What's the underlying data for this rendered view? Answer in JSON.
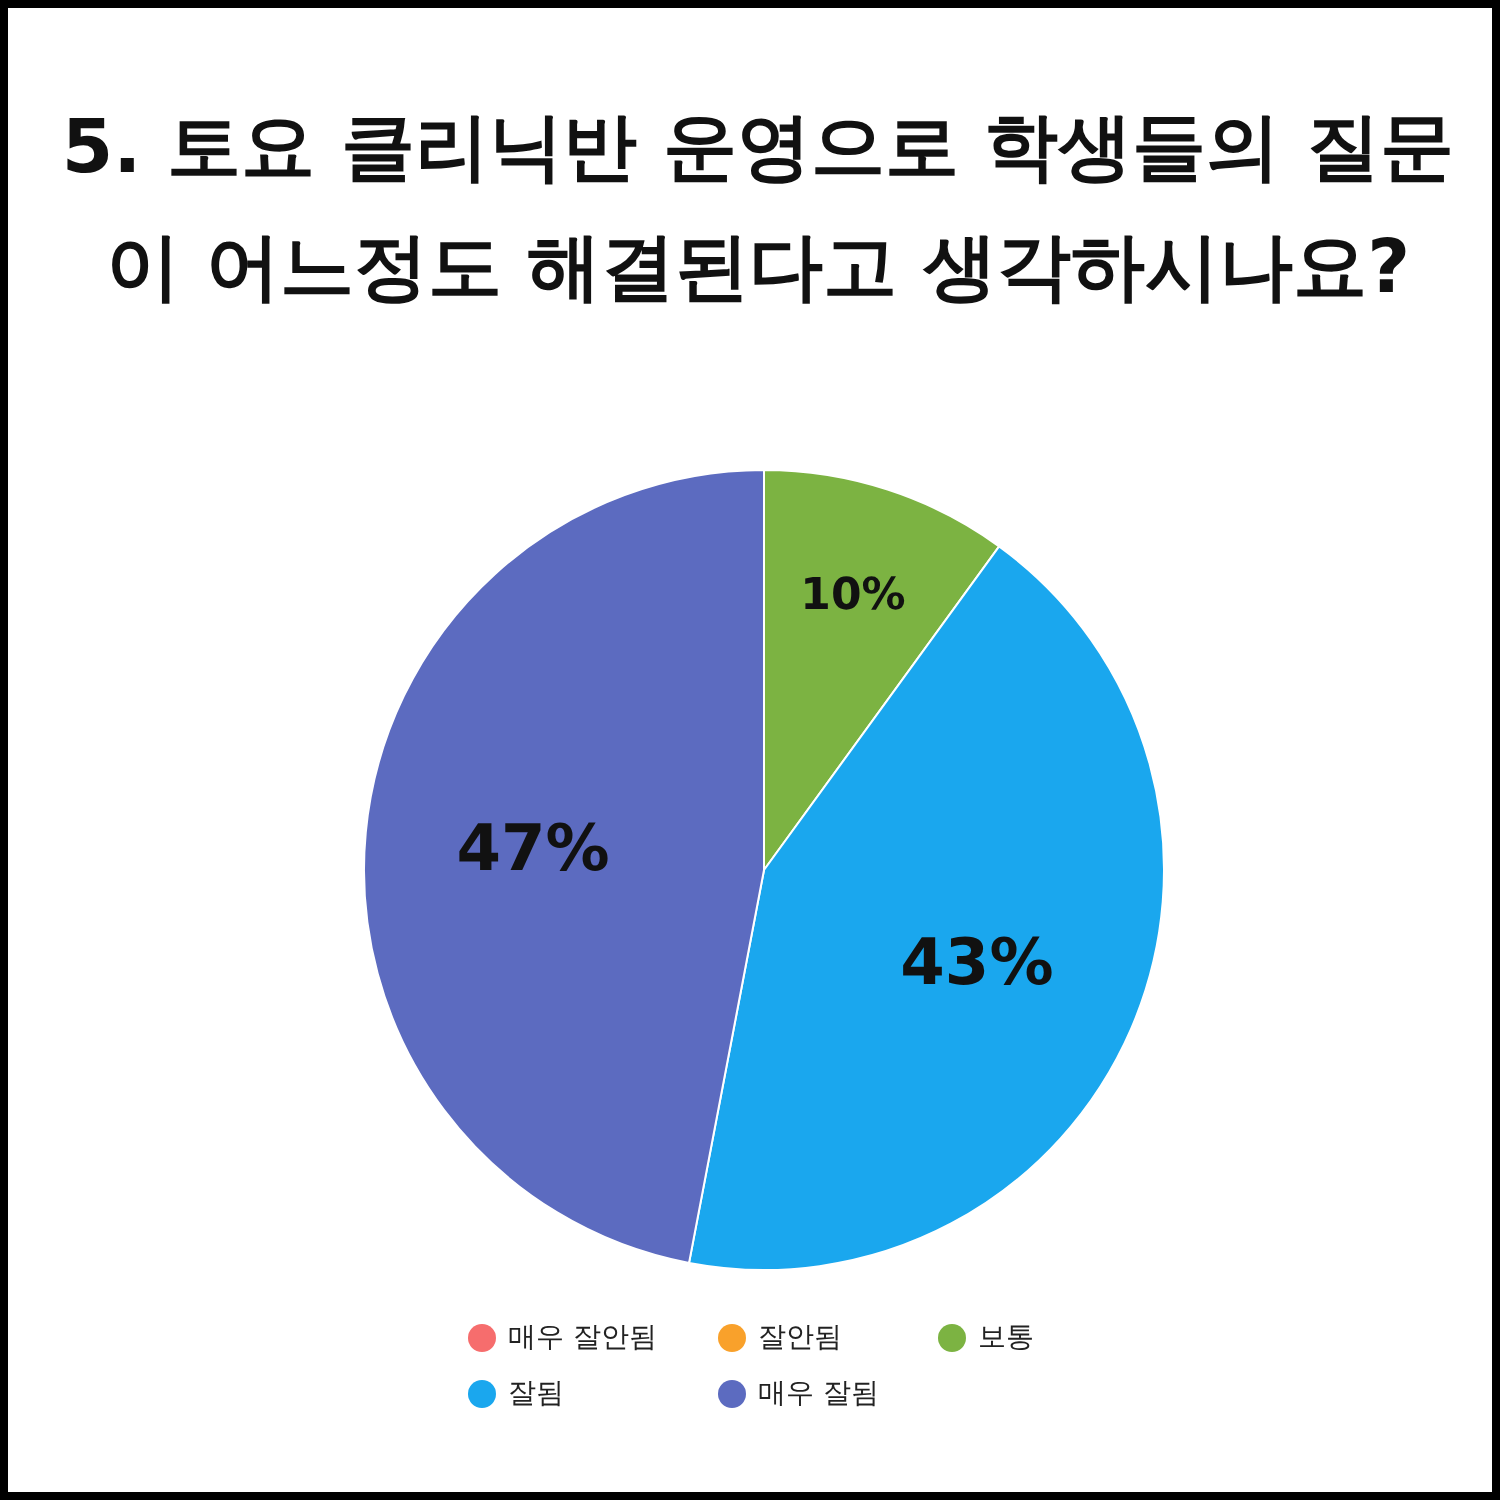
{
  "chart_data": {
    "type": "pie",
    "title": "5. 토요 클리닉반 운영으로 학생들의 질문이 어느정도 해결된다고 생각하시나요?",
    "categories": [
      "매우 잘안됨",
      "잘안됨",
      "보통",
      "잘됨",
      "매우 잘됨"
    ],
    "values": [
      0,
      0,
      10,
      43,
      47
    ],
    "colors": [
      "#f66d6d",
      "#f9a12b",
      "#7cb342",
      "#1aa7ee",
      "#5c6bc0"
    ],
    "value_labels": [
      null,
      null,
      "10%",
      "43%",
      "47%"
    ],
    "legend": "bottom"
  }
}
